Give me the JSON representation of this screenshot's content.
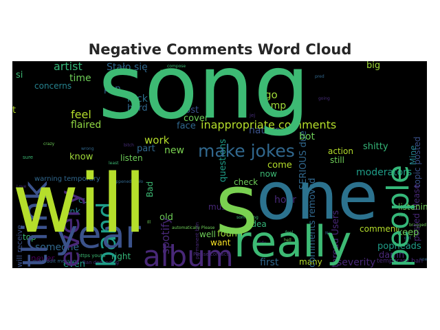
{
  "title": "Negative Comments Word Cloud",
  "palette": {
    "green": "#3dba74",
    "lime": "#b5de2b",
    "teal": "#2c728e",
    "purple": "#472d7b",
    "blue": "#31688e",
    "yellowgreen": "#7ad151",
    "background": "#000000"
  },
  "words": [
    {
      "text": "song",
      "color": "#3dba74"
    },
    {
      "text": "will",
      "color": "#b5de2b"
    },
    {
      "text": "one",
      "color": "#2c728e"
    },
    {
      "text": "really",
      "color": "#3dba74"
    },
    {
      "text": "year",
      "color": "#3b528b"
    },
    {
      "text": "album",
      "color": "#482878"
    },
    {
      "text": "think",
      "color": "#3b528b"
    },
    {
      "text": "people",
      "color": "#35b779"
    },
    {
      "text": "band",
      "color": "#1f9e89"
    },
    {
      "text": "every",
      "color": "#482878"
    },
    {
      "text": "make jokes",
      "color": "#31688e"
    },
    {
      "text": "s",
      "color": "#7ad151"
    },
    {
      "text": "inappropriate comments",
      "color": "#b5de2b"
    },
    {
      "text": "Stało się",
      "color": "#31688e"
    },
    {
      "text": "artist",
      "color": "#35b779"
    },
    {
      "text": "time",
      "color": "#6ece58"
    },
    {
      "text": "concerns",
      "color": "#26828e"
    },
    {
      "text": "feel",
      "color": "#b5de2b"
    },
    {
      "text": "flaired",
      "color": "#90d743"
    },
    {
      "text": "know",
      "color": "#a0da39"
    },
    {
      "text": "link",
      "color": "#26828e"
    },
    {
      "text": "cut",
      "color": "#26828e"
    },
    {
      "text": "top",
      "color": "#3dba74"
    },
    {
      "text": "someone",
      "color": "#31688e"
    },
    {
      "text": "never",
      "color": "#440154"
    },
    {
      "text": "even",
      "color": "#1f9e89"
    },
    {
      "text": "right",
      "color": "#35b779"
    },
    {
      "text": "pop",
      "color": "#31688e"
    },
    {
      "text": "rock",
      "color": "#2c728e"
    },
    {
      "text": "hard",
      "color": "#31688e"
    },
    {
      "text": "work",
      "color": "#b5de2b"
    },
    {
      "text": "part",
      "color": "#31688e"
    },
    {
      "text": "listen",
      "color": "#6ece58"
    },
    {
      "text": "new",
      "color": "#7ad151"
    },
    {
      "text": "spotify",
      "color": "#482878"
    },
    {
      "text": "Bad",
      "color": "#3dba74"
    },
    {
      "text": "post",
      "color": "#3b528b"
    },
    {
      "text": "cover",
      "color": "#6ece58"
    },
    {
      "text": "face",
      "color": "#31688e"
    },
    {
      "text": "questions",
      "color": "#1f9e89"
    },
    {
      "text": "go",
      "color": "#a0da39"
    },
    {
      "text": "amp",
      "color": "#a0da39"
    },
    {
      "text": "nature",
      "color": "#3b528b"
    },
    {
      "text": "bot",
      "color": "#6ece58"
    },
    {
      "text": "SERIOUS due",
      "color": "#31688e"
    },
    {
      "text": "big",
      "color": "#a0da39"
    },
    {
      "text": "shitty",
      "color": "#35b779"
    },
    {
      "text": "topic posted",
      "color": "#3b528b"
    },
    {
      "text": "posted Please",
      "color": "#482878"
    },
    {
      "text": "Mine",
      "color": "#26828e"
    },
    {
      "text": "action",
      "color": "#b5de2b"
    },
    {
      "text": "still",
      "color": "#6ece58"
    },
    {
      "text": "come",
      "color": "#b5de2b"
    },
    {
      "text": "now",
      "color": "#3dba74"
    },
    {
      "text": "check",
      "color": "#6ece58"
    },
    {
      "text": "moderators",
      "color": "#1f9e89"
    },
    {
      "text": "hour",
      "color": "#482878"
    },
    {
      "text": "listening",
      "color": "#6ece58"
    },
    {
      "text": "music",
      "color": "#482878"
    },
    {
      "text": "old",
      "color": "#6ece58"
    },
    {
      "text": "comments removed",
      "color": "#31688e"
    },
    {
      "text": "thread Users",
      "color": "#482878"
    },
    {
      "text": "idea",
      "color": "#35b779"
    },
    {
      "text": "found",
      "color": "#a0da39"
    },
    {
      "text": "well",
      "color": "#6ece58"
    },
    {
      "text": "want",
      "color": "#fde725"
    },
    {
      "text": "comment",
      "color": "#b5de2b"
    },
    {
      "text": "keep",
      "color": "#6ece58"
    },
    {
      "text": "popheads",
      "color": "#1f9e89"
    },
    {
      "text": "damn",
      "color": "#482878"
    },
    {
      "text": "severity",
      "color": "#482878"
    },
    {
      "text": "many",
      "color": "#b5de2b"
    },
    {
      "text": "first",
      "color": "#31688e"
    },
    {
      "text": "will receive",
      "color": "#3b528b"
    },
    {
      "text": "warning temporary",
      "color": "#31688e"
    },
    {
      "text": "permanent ban",
      "color": "#482878"
    },
    {
      "text": "temporary ban",
      "color": "#482878"
    },
    {
      "text": "t",
      "color": "#b5de2b"
    },
    {
      "text": "si",
      "color": "#3dba74"
    }
  ],
  "small_words": [
    "Ban depending",
    "subreddit message",
    "https youtu",
    "automatically Please",
    "Please contact",
    "happened Stało",
    "compose",
    "message",
    "Love",
    "wrong",
    "sure",
    "crazy",
    "bitch",
    "pred",
    "feel",
    "hell",
    "jej",
    "get",
    "something",
    "Ill",
    "going",
    "Na",
    "talk",
    "bragged",
    "Gdy",
    "now",
    "least"
  ]
}
